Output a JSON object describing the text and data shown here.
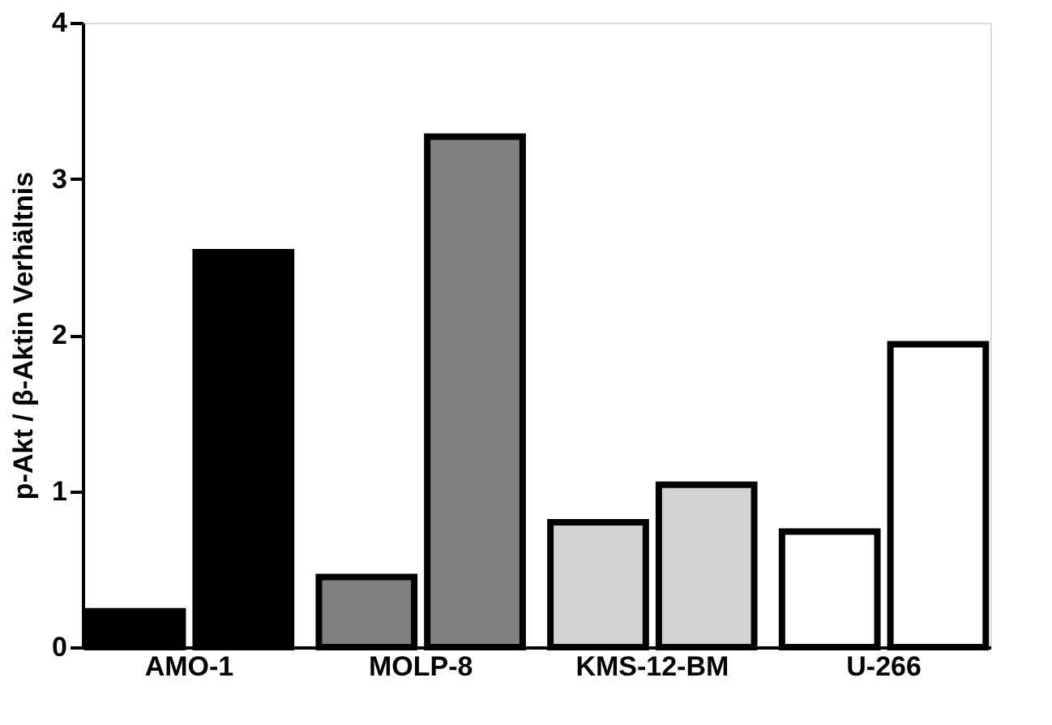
{
  "chart_data": {
    "type": "bar",
    "ylabel": "p-Akt / β-Aktin Verhältnis",
    "categories": [
      "AMO-1",
      "MOLP-8",
      "KMS-12-BM",
      "U-266"
    ],
    "series": [
      {
        "colors": [
          "#000000",
          "#808080",
          "#d3d3d3",
          "#ffffff"
        ],
        "values": [
          0.23,
          0.45,
          0.8,
          0.74
        ]
      },
      {
        "colors": [
          "#000000",
          "#808080",
          "#d3d3d3",
          "#ffffff"
        ],
        "values": [
          2.53,
          3.27,
          1.04,
          1.94
        ]
      }
    ],
    "ylim": [
      0,
      4
    ],
    "yticks": [
      0,
      1,
      2,
      3,
      4
    ],
    "grid": false
  }
}
